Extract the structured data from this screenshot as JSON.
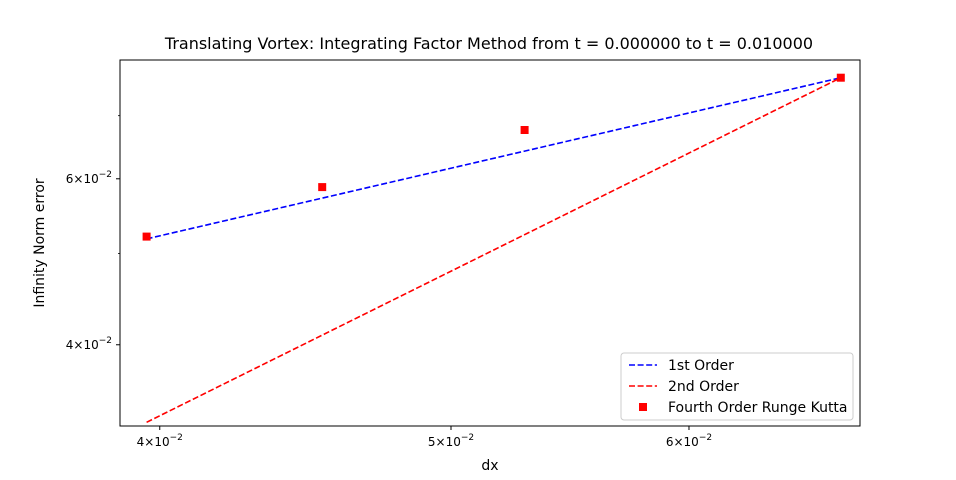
{
  "chart_data": {
    "type": "line",
    "title": "Translating Vortex: Integrating Factor Method from t = 0.000000 to t = 0.010000",
    "xlabel": "dx",
    "ylabel": "Infinity Norm error",
    "xscale": "log",
    "yscale": "log",
    "xlim": [
      0.0388,
      0.0684
    ],
    "ylim": [
      0.0328,
      0.0802
    ],
    "grid": false,
    "legend_position": "lower-right",
    "x_major_ticks": [
      {
        "value": 0.04,
        "base": "4×10",
        "exp": "−2"
      },
      {
        "value": 0.05,
        "base": "5×10",
        "exp": "−2"
      },
      {
        "value": 0.06,
        "base": "6×10",
        "exp": "−2"
      }
    ],
    "y_major_ticks": [
      {
        "value": 0.04,
        "base": "4×10",
        "exp": "−2"
      },
      {
        "value": 0.06,
        "base": "6×10",
        "exp": "−2"
      }
    ],
    "y_minor_ticks": [
      0.05,
      0.07
    ],
    "series": [
      {
        "name": "1st Order",
        "style": "dashed",
        "color": "#0000ff",
        "x": [
          0.0396,
          0.0674
        ],
        "y": [
          0.0518,
          0.0768
        ]
      },
      {
        "name": "2nd Order",
        "style": "dashed",
        "color": "#ff0000",
        "x": [
          0.0396,
          0.0674
        ],
        "y": [
          0.0331,
          0.0768
        ]
      },
      {
        "name": "Fourth Order Runge Kutta",
        "style": "square-markers",
        "color": "#ff0000",
        "x": [
          0.0396,
          0.0453,
          0.0529,
          0.0674
        ],
        "y": [
          0.0521,
          0.0588,
          0.0676,
          0.0768
        ]
      }
    ]
  }
}
